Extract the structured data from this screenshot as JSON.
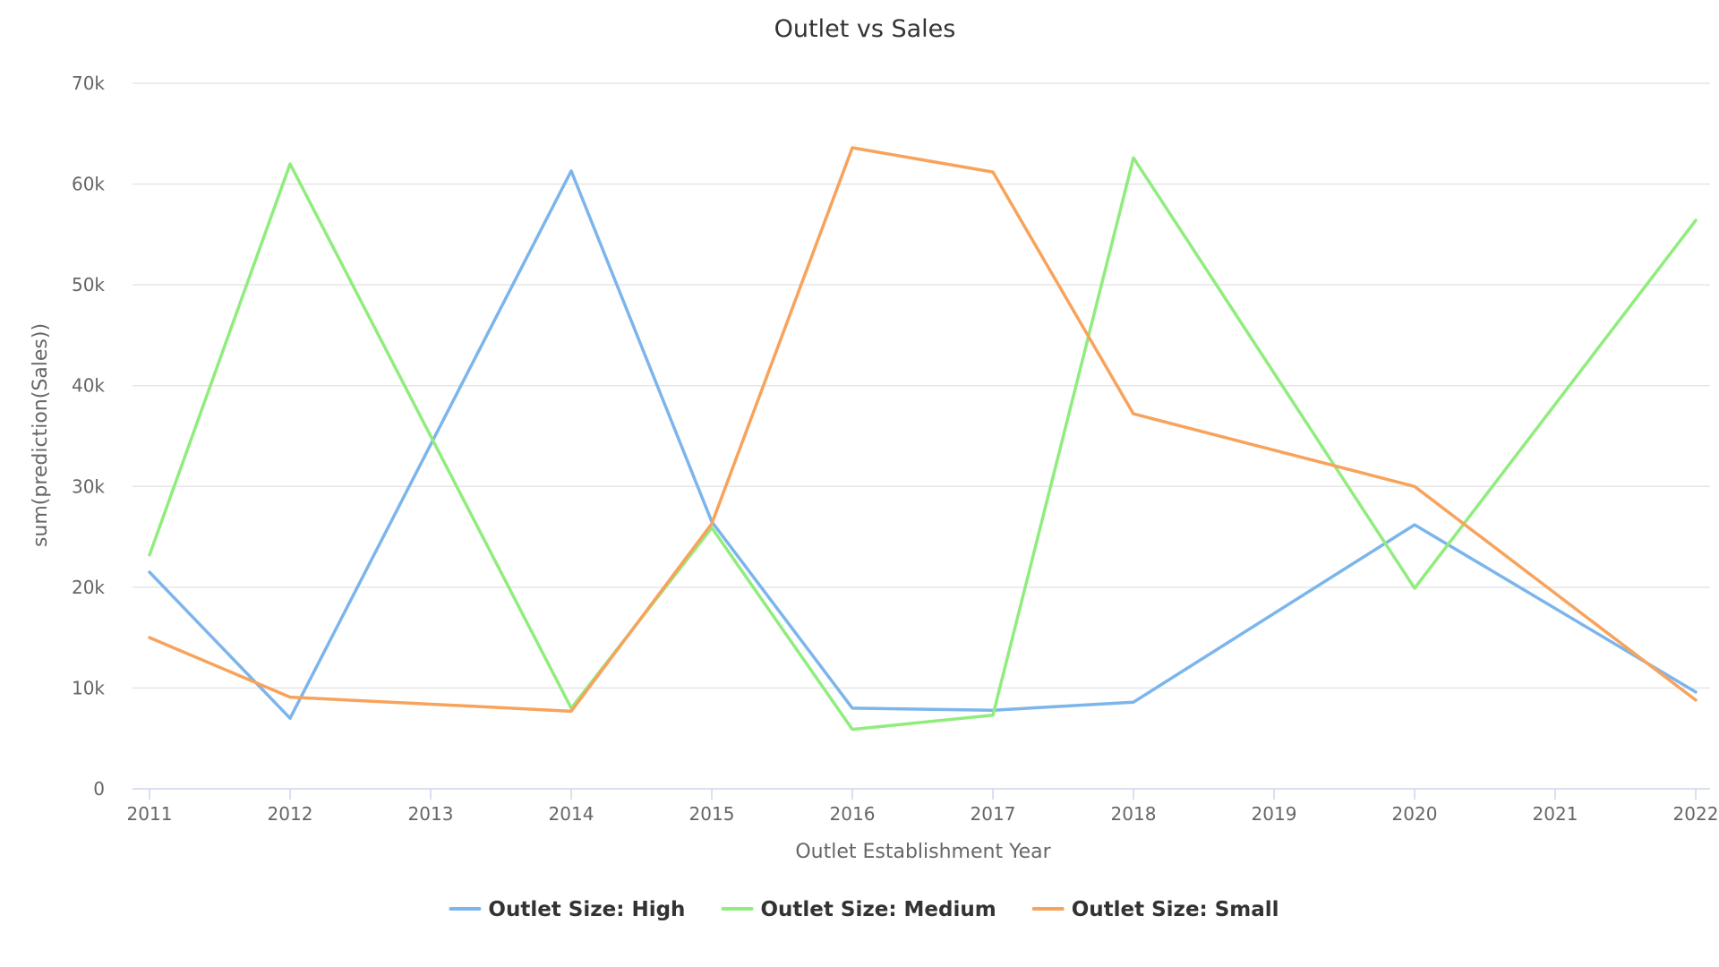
{
  "chart_data": {
    "type": "line",
    "title": "Outlet vs Sales",
    "xlabel": "Outlet Establishment Year",
    "ylabel": "sum(prediction(Sales))",
    "x": [
      2011,
      2012,
      2013,
      2014,
      2015,
      2016,
      2017,
      2018,
      2019,
      2020,
      2021,
      2022
    ],
    "x_tick_labels": [
      "2011",
      "2012",
      "2013",
      "2014",
      "2015",
      "2016",
      "2017",
      "2018",
      "2019",
      "2020",
      "2021",
      "2022"
    ],
    "ylim": [
      0,
      70000
    ],
    "y_ticks": [
      0,
      10000,
      20000,
      30000,
      40000,
      50000,
      60000,
      70000
    ],
    "y_tick_labels": [
      "0",
      "10k",
      "20k",
      "30k",
      "40k",
      "50k",
      "60k",
      "70k"
    ],
    "grid": true,
    "legend_position": "bottom-center",
    "series": [
      {
        "name": "Outlet Size: High",
        "color": "#7cb5ec",
        "points": [
          [
            2011,
            21500
          ],
          [
            2012,
            7000
          ],
          [
            2014,
            61300
          ],
          [
            2015,
            26500
          ],
          [
            2016,
            8000
          ],
          [
            2017,
            7800
          ],
          [
            2018,
            8600
          ],
          [
            2020,
            26200
          ],
          [
            2022,
            9600
          ]
        ]
      },
      {
        "name": "Outlet Size: Medium",
        "color": "#90ed7d",
        "points": [
          [
            2011,
            23200
          ],
          [
            2012,
            62000
          ],
          [
            2014,
            8000
          ],
          [
            2015,
            25900
          ],
          [
            2016,
            5900
          ],
          [
            2017,
            7300
          ],
          [
            2018,
            62600
          ],
          [
            2020,
            19900
          ],
          [
            2022,
            56400
          ]
        ]
      },
      {
        "name": "Outlet Size: Small",
        "color": "#f7a35c",
        "points": [
          [
            2011,
            15000
          ],
          [
            2012,
            9100
          ],
          [
            2014,
            7700
          ],
          [
            2015,
            26300
          ],
          [
            2016,
            63600
          ],
          [
            2017,
            61200
          ],
          [
            2018,
            37200
          ],
          [
            2020,
            30000
          ],
          [
            2022,
            8800
          ]
        ]
      }
    ]
  }
}
